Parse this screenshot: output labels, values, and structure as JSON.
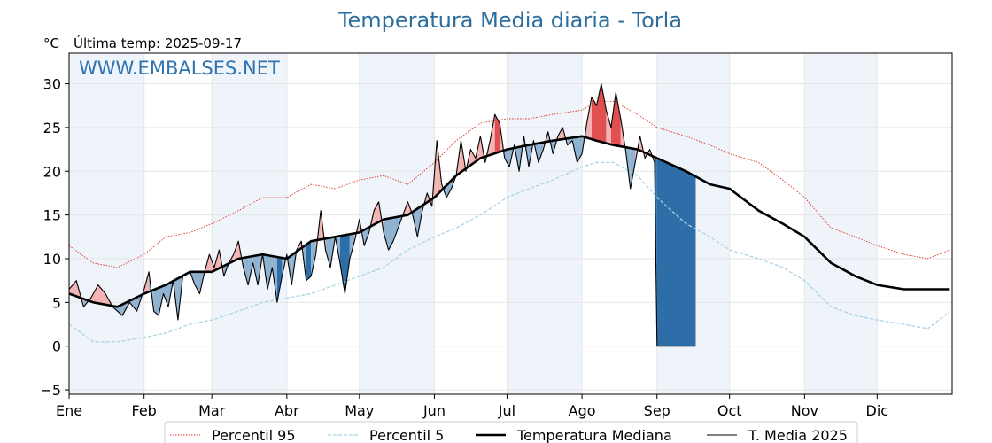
{
  "chart_data": {
    "type": "line",
    "title": "Temperatura Media diaria - Torla",
    "unit_label": "°C",
    "last_temp_label": "Última temp: 2025-09-17",
    "watermark": "WWW.EMBALSES.NET",
    "ylim": [
      -5.5,
      33.5
    ],
    "y_ticks": [
      -5,
      0,
      5,
      10,
      15,
      20,
      25,
      30
    ],
    "y_tick_labels": [
      "−5",
      "0",
      "5",
      "10",
      "15",
      "20",
      "25",
      "30"
    ],
    "months": [
      "Ene",
      "Feb",
      "Mar",
      "Abr",
      "May",
      "Jun",
      "Jul",
      "Ago",
      "Sep",
      "Oct",
      "Nov",
      "Dic"
    ],
    "month_start_days": [
      0,
      31,
      59,
      90,
      120,
      151,
      181,
      212,
      243,
      273,
      304,
      334
    ],
    "days_in_year": 365,
    "grid": true,
    "legend_position": "bottom",
    "series": [
      {
        "name": "Percentil 95",
        "color": "#e03020",
        "points": [
          [
            0,
            11.5
          ],
          [
            10,
            9.5
          ],
          [
            20,
            9.0
          ],
          [
            31,
            10.5
          ],
          [
            40,
            12.5
          ],
          [
            50,
            13.0
          ],
          [
            59,
            14.0
          ],
          [
            70,
            15.5
          ],
          [
            80,
            17.0
          ],
          [
            90,
            17.0
          ],
          [
            100,
            18.5
          ],
          [
            110,
            18.0
          ],
          [
            120,
            19.0
          ],
          [
            130,
            19.5
          ],
          [
            140,
            18.5
          ],
          [
            151,
            21.0
          ],
          [
            160,
            23.5
          ],
          [
            170,
            25.5
          ],
          [
            181,
            26.0
          ],
          [
            190,
            26.0
          ],
          [
            200,
            26.5
          ],
          [
            212,
            27.0
          ],
          [
            218,
            28.0
          ],
          [
            225,
            28.0
          ],
          [
            235,
            26.5
          ],
          [
            243,
            25.0
          ],
          [
            255,
            24.0
          ],
          [
            265,
            23.0
          ],
          [
            273,
            22.0
          ],
          [
            285,
            21.0
          ],
          [
            295,
            19.0
          ],
          [
            304,
            17.0
          ],
          [
            315,
            13.5
          ],
          [
            325,
            12.5
          ],
          [
            334,
            11.5
          ],
          [
            345,
            10.5
          ],
          [
            355,
            10.0
          ],
          [
            364,
            11.0
          ]
        ]
      },
      {
        "name": "Percentil 5",
        "color": "#a8d4e6",
        "points": [
          [
            0,
            2.5
          ],
          [
            10,
            0.5
          ],
          [
            20,
            0.5
          ],
          [
            31,
            1.0
          ],
          [
            40,
            1.5
          ],
          [
            50,
            2.5
          ],
          [
            59,
            3.0
          ],
          [
            70,
            4.0
          ],
          [
            80,
            5.0
          ],
          [
            90,
            5.5
          ],
          [
            100,
            6.0
          ],
          [
            110,
            7.0
          ],
          [
            120,
            8.0
          ],
          [
            130,
            9.0
          ],
          [
            140,
            11.0
          ],
          [
            151,
            12.5
          ],
          [
            160,
            13.5
          ],
          [
            170,
            15.0
          ],
          [
            181,
            17.0
          ],
          [
            190,
            18.0
          ],
          [
            200,
            19.0
          ],
          [
            212,
            20.5
          ],
          [
            218,
            21.0
          ],
          [
            225,
            21.0
          ],
          [
            235,
            19.5
          ],
          [
            243,
            17.0
          ],
          [
            255,
            14.0
          ],
          [
            265,
            12.5
          ],
          [
            273,
            11.0
          ],
          [
            285,
            10.0
          ],
          [
            295,
            9.0
          ],
          [
            304,
            7.5
          ],
          [
            315,
            4.5
          ],
          [
            325,
            3.5
          ],
          [
            334,
            3.0
          ],
          [
            345,
            2.5
          ],
          [
            355,
            2.0
          ],
          [
            364,
            4.0
          ]
        ]
      },
      {
        "name": "Temperatura Mediana",
        "color": "#000000",
        "points": [
          [
            0,
            6.0
          ],
          [
            10,
            5.0
          ],
          [
            20,
            4.5
          ],
          [
            31,
            6.0
          ],
          [
            40,
            7.0
          ],
          [
            50,
            8.5
          ],
          [
            59,
            8.5
          ],
          [
            70,
            10.0
          ],
          [
            80,
            10.5
          ],
          [
            90,
            10.0
          ],
          [
            100,
            12.0
          ],
          [
            110,
            12.5
          ],
          [
            120,
            13.0
          ],
          [
            130,
            14.5
          ],
          [
            140,
            15.0
          ],
          [
            151,
            17.0
          ],
          [
            160,
            19.5
          ],
          [
            170,
            21.5
          ],
          [
            181,
            22.5
          ],
          [
            190,
            23.0
          ],
          [
            200,
            23.5
          ],
          [
            212,
            24.0
          ],
          [
            218,
            23.5
          ],
          [
            225,
            23.0
          ],
          [
            235,
            22.5
          ],
          [
            243,
            21.5
          ],
          [
            255,
            20.0
          ],
          [
            265,
            18.5
          ],
          [
            273,
            18.0
          ],
          [
            285,
            15.5
          ],
          [
            295,
            14.0
          ],
          [
            304,
            12.5
          ],
          [
            315,
            9.5
          ],
          [
            325,
            8.0
          ],
          [
            334,
            7.0
          ],
          [
            345,
            6.5
          ],
          [
            355,
            6.5
          ],
          [
            364,
            6.5
          ]
        ]
      },
      {
        "name": "T. Media 2025",
        "color": "#000000",
        "points": [
          [
            0,
            6.5
          ],
          [
            3,
            7.5
          ],
          [
            6,
            4.5
          ],
          [
            9,
            5.5
          ],
          [
            12,
            7.0
          ],
          [
            15,
            6.0
          ],
          [
            18,
            4.5
          ],
          [
            22,
            3.5
          ],
          [
            25,
            5.0
          ],
          [
            28,
            4.0
          ],
          [
            31,
            6.5
          ],
          [
            33,
            8.5
          ],
          [
            35,
            4.0
          ],
          [
            37,
            3.5
          ],
          [
            39,
            6.0
          ],
          [
            41,
            4.5
          ],
          [
            43,
            7.5
          ],
          [
            45,
            3.0
          ],
          [
            47,
            8.0
          ],
          [
            50,
            8.5
          ],
          [
            52,
            7.0
          ],
          [
            54,
            6.0
          ],
          [
            56,
            8.5
          ],
          [
            58,
            10.5
          ],
          [
            60,
            9.0
          ],
          [
            62,
            11.0
          ],
          [
            64,
            8.0
          ],
          [
            66,
            9.5
          ],
          [
            68,
            10.5
          ],
          [
            70,
            12.0
          ],
          [
            72,
            9.0
          ],
          [
            74,
            7.0
          ],
          [
            76,
            9.5
          ],
          [
            78,
            7.0
          ],
          [
            80,
            10.5
          ],
          [
            82,
            6.5
          ],
          [
            84,
            9.0
          ],
          [
            86,
            5.0
          ],
          [
            88,
            8.0
          ],
          [
            90,
            10.5
          ],
          [
            92,
            7.0
          ],
          [
            94,
            11.0
          ],
          [
            96,
            12.0
          ],
          [
            98,
            7.5
          ],
          [
            100,
            8.0
          ],
          [
            102,
            10.5
          ],
          [
            104,
            15.5
          ],
          [
            106,
            11.0
          ],
          [
            108,
            9.0
          ],
          [
            110,
            12.5
          ],
          [
            112,
            9.5
          ],
          [
            114,
            6.0
          ],
          [
            116,
            10.0
          ],
          [
            118,
            12.0
          ],
          [
            120,
            14.5
          ],
          [
            122,
            11.5
          ],
          [
            124,
            13.0
          ],
          [
            126,
            15.5
          ],
          [
            128,
            16.5
          ],
          [
            130,
            13.0
          ],
          [
            132,
            11.0
          ],
          [
            134,
            12.0
          ],
          [
            136,
            13.5
          ],
          [
            138,
            15.0
          ],
          [
            140,
            16.5
          ],
          [
            142,
            15.0
          ],
          [
            144,
            12.5
          ],
          [
            146,
            15.5
          ],
          [
            148,
            17.5
          ],
          [
            150,
            16.0
          ],
          [
            152,
            23.5
          ],
          [
            154,
            18.5
          ],
          [
            156,
            17.0
          ],
          [
            158,
            18.0
          ],
          [
            160,
            19.5
          ],
          [
            162,
            23.5
          ],
          [
            164,
            20.0
          ],
          [
            166,
            22.5
          ],
          [
            168,
            21.5
          ],
          [
            170,
            24.0
          ],
          [
            172,
            21.0
          ],
          [
            174,
            23.5
          ],
          [
            176,
            26.5
          ],
          [
            178,
            25.5
          ],
          [
            180,
            21.5
          ],
          [
            182,
            20.5
          ],
          [
            184,
            23.0
          ],
          [
            186,
            20.0
          ],
          [
            188,
            24.0
          ],
          [
            190,
            20.5
          ],
          [
            192,
            23.5
          ],
          [
            194,
            21.0
          ],
          [
            196,
            22.5
          ],
          [
            198,
            24.5
          ],
          [
            200,
            22.0
          ],
          [
            202,
            24.0
          ],
          [
            204,
            25.0
          ],
          [
            206,
            23.0
          ],
          [
            208,
            23.5
          ],
          [
            210,
            21.0
          ],
          [
            212,
            22.0
          ],
          [
            214,
            25.5
          ],
          [
            216,
            28.5
          ],
          [
            218,
            27.5
          ],
          [
            220,
            30.0
          ],
          [
            222,
            27.0
          ],
          [
            224,
            25.0
          ],
          [
            226,
            29.0
          ],
          [
            228,
            26.0
          ],
          [
            230,
            22.5
          ],
          [
            232,
            18.0
          ],
          [
            234,
            21.0
          ],
          [
            236,
            24.0
          ],
          [
            238,
            21.5
          ],
          [
            240,
            22.5
          ],
          [
            242,
            21.0
          ],
          [
            243,
            0.0
          ],
          [
            259,
            0.0
          ]
        ]
      }
    ],
    "legend": [
      {
        "label": "Percentil 95",
        "style": "dotted-red"
      },
      {
        "label": "Percentil 5",
        "style": "dashed-lightblue"
      },
      {
        "label": "Temperatura Mediana",
        "style": "thick-black"
      },
      {
        "label": "T. Media 2025",
        "style": "thin-black"
      }
    ],
    "colors": {
      "above_median_fill": "#f4b4b4",
      "above_median_strong": "#e05050",
      "below_median_fill": "#8fb2d0",
      "below_median_strong": "#2e6ea8",
      "month_band": "#eef4fa"
    }
  }
}
